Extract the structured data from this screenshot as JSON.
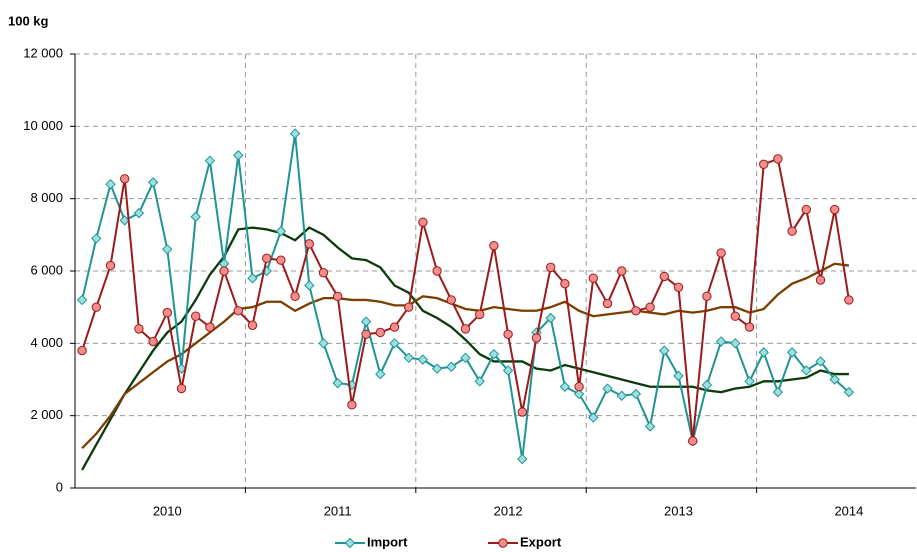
{
  "chart_data": {
    "type": "line",
    "y_label": "100 kg",
    "categories": [
      null,
      null,
      null,
      null,
      null,
      null,
      "2010",
      null,
      null,
      null,
      null,
      null,
      null,
      null,
      null,
      null,
      null,
      null,
      "2011",
      null,
      null,
      null,
      null,
      null,
      null,
      null,
      null,
      null,
      null,
      null,
      "2012",
      null,
      null,
      null,
      null,
      null,
      null,
      null,
      null,
      null,
      null,
      null,
      "2013",
      null,
      null,
      null,
      null,
      null,
      null,
      null,
      null,
      null,
      null,
      null,
      "2014"
    ],
    "ylim": [
      0,
      12000
    ],
    "yticks": [
      0,
      {
        "value": 2000,
        "label": "2 000"
      },
      {
        "value": 4000,
        "label": "4 000"
      },
      {
        "value": 6000,
        "label": "6 000"
      },
      {
        "value": 8000,
        "label": "8 000"
      },
      {
        "value": 10000,
        "label": "10 000"
      },
      {
        "value": 12000,
        "label": "12 000"
      }
    ],
    "grid": true,
    "legend": "bottom",
    "series": [
      {
        "color": "#0b3b0b",
        "values": [
          500,
          1200,
          1900,
          2600,
          3200,
          3800,
          4300,
          4600,
          5200,
          5900,
          6400,
          7150,
          7200,
          7150,
          7050,
          6850,
          7200,
          7000,
          6650,
          6350,
          6300,
          6100,
          5600,
          5400,
          4900,
          4700,
          4450,
          4100,
          3700,
          3500,
          3500,
          3500,
          3300,
          3250,
          3400,
          3300,
          3200,
          3100,
          3000,
          2900,
          2800,
          2800,
          2800,
          2800,
          2700,
          2650,
          2750,
          2800,
          2950,
          2950,
          3000,
          3050,
          3250,
          3150,
          3150
        ]
      },
      {
        "color": "#7a3e00",
        "values": [
          1100,
          1500,
          2000,
          2600,
          2900,
          3200,
          3500,
          3700,
          4000,
          4300,
          4600,
          4950,
          5000,
          5150,
          5150,
          4900,
          5100,
          5250,
          5250,
          5200,
          5200,
          5150,
          5050,
          5050,
          5300,
          5250,
          5100,
          4950,
          4900,
          5000,
          4950,
          4900,
          4900,
          5000,
          5150,
          4900,
          4750,
          4800,
          4850,
          4900,
          4850,
          4800,
          4900,
          4850,
          4900,
          5000,
          5000,
          4850,
          4950,
          5350,
          5650,
          5800,
          6000,
          6200,
          6150
        ]
      },
      {
        "name": "Import",
        "color": "#1f9494",
        "marker": "diamond",
        "values": [
          5200,
          6900,
          8400,
          7400,
          7600,
          8450,
          6600,
          3300,
          7500,
          9050,
          6200,
          9200,
          5800,
          6000,
          7100,
          9800,
          5600,
          4000,
          2900,
          2850,
          4600,
          3150,
          4000,
          3600,
          3550,
          3300,
          3350,
          3600,
          2950,
          3700,
          3250,
          800,
          4300,
          4700,
          2800,
          2600,
          1950,
          2750,
          2550,
          2600,
          1700,
          3800,
          3100,
          1300,
          2850,
          4050,
          4000,
          2950,
          3750,
          2650,
          3750,
          3250,
          3500,
          3000,
          2650
        ]
      },
      {
        "name": "Export",
        "color": "#9b1b1b",
        "marker": "circle",
        "values": [
          3800,
          5000,
          6150,
          8550,
          4400,
          4050,
          4850,
          2750,
          4750,
          4450,
          6000,
          4900,
          4500,
          6350,
          6300,
          5300,
          6750,
          5950,
          5300,
          2300,
          4250,
          4300,
          4450,
          5000,
          7350,
          6000,
          5200,
          4400,
          4800,
          6700,
          4250,
          2100,
          4150,
          6100,
          5650,
          2800,
          5800,
          5100,
          6000,
          4900,
          5000,
          5850,
          5550,
          1300,
          5300,
          6500,
          4750,
          4450,
          8950,
          9100,
          7100,
          7700,
          5750,
          7700,
          5200
        ]
      }
    ]
  }
}
